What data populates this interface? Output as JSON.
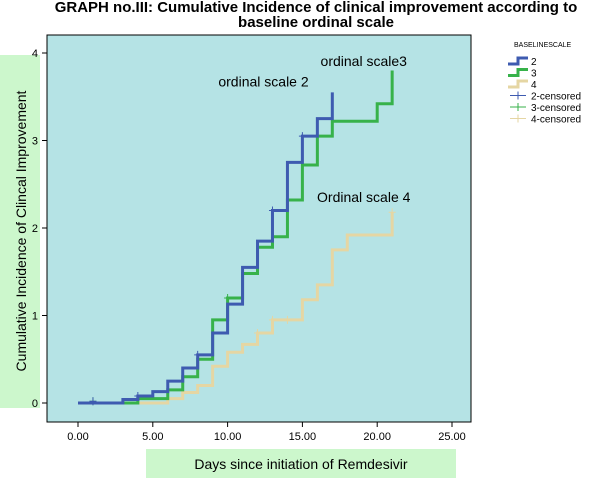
{
  "chart_data": {
    "type": "line",
    "title_line1": "GRAPH no.III:  Cumulative Incidence of clinical improvement according to",
    "title_line2": "baseline ordinal scale",
    "xlabel": "Days since initiation of Remdesivir",
    "ylabel": "Cumulative Incidence of Clincal Improvement",
    "xlim": [
      0,
      25
    ],
    "ylim": [
      0,
      4
    ],
    "x_ticks": [
      {
        "value": 0,
        "label": "0.00"
      },
      {
        "value": 5,
        "label": "5.00"
      },
      {
        "value": 10,
        "label": "10.00"
      },
      {
        "value": 15,
        "label": "15.00"
      },
      {
        "value": 20,
        "label": "20.00"
      },
      {
        "value": 25,
        "label": "25.00"
      }
    ],
    "y_ticks": [
      {
        "value": 0,
        "label": "0"
      },
      {
        "value": 1,
        "label": "1"
      },
      {
        "value": 2,
        "label": "2"
      },
      {
        "value": 3,
        "label": "3"
      },
      {
        "value": 4,
        "label": "4"
      }
    ],
    "grid": false,
    "legend_position": "top-right",
    "legend_title": "BASELINESCALE",
    "colors": {
      "plot_background": "#b5e3e5",
      "label_background": "#ccf7cc",
      "series_2": "#3e5bb0",
      "series_3": "#37b24a",
      "series_4": "#e5d6a3"
    },
    "series": [
      {
        "name": "2",
        "censored_name": "2-censored",
        "steps": [
          [
            0,
            0
          ],
          [
            3,
            0.04
          ],
          [
            4,
            0.08
          ],
          [
            5,
            0.13
          ],
          [
            6,
            0.25
          ],
          [
            7,
            0.4
          ],
          [
            8,
            0.55
          ],
          [
            9,
            0.8
          ],
          [
            10,
            1.13
          ],
          [
            11,
            1.55
          ],
          [
            12,
            1.85
          ],
          [
            13,
            2.2
          ],
          [
            14,
            2.75
          ],
          [
            15,
            3.05
          ],
          [
            16,
            3.25
          ],
          [
            17,
            3.55
          ]
        ],
        "end_x": 17,
        "censored": [
          [
            1,
            0.02
          ],
          [
            4,
            0.08
          ],
          [
            8,
            0.55
          ],
          [
            13,
            2.2
          ],
          [
            15,
            3.05
          ]
        ]
      },
      {
        "name": "3",
        "censored_name": "3-censored",
        "steps": [
          [
            0,
            0
          ],
          [
            4,
            0.05
          ],
          [
            6,
            0.15
          ],
          [
            7,
            0.3
          ],
          [
            8,
            0.5
          ],
          [
            9,
            0.95
          ],
          [
            10,
            1.2
          ],
          [
            11,
            1.48
          ],
          [
            12,
            1.78
          ],
          [
            13,
            1.9
          ],
          [
            14,
            2.32
          ],
          [
            15,
            2.72
          ],
          [
            16,
            3.05
          ],
          [
            17,
            3.22
          ],
          [
            20,
            3.42
          ],
          [
            21,
            3.8
          ]
        ],
        "end_x": 21,
        "censored": [
          [
            1,
            0.02
          ],
          [
            10,
            1.2
          ]
        ]
      },
      {
        "name": "4",
        "censored_name": "4-censored",
        "steps": [
          [
            0,
            0
          ],
          [
            6,
            0.05
          ],
          [
            7,
            0.12
          ],
          [
            8,
            0.2
          ],
          [
            9,
            0.42
          ],
          [
            10,
            0.58
          ],
          [
            11,
            0.67
          ],
          [
            12,
            0.8
          ],
          [
            13,
            0.95
          ],
          [
            15,
            1.18
          ],
          [
            16,
            1.35
          ],
          [
            17,
            1.75
          ],
          [
            18,
            1.92
          ],
          [
            21,
            2.18
          ]
        ],
        "end_x": 21,
        "censored": [
          [
            12,
            0.8
          ],
          [
            13,
            0.95
          ],
          [
            14,
            0.95
          ],
          [
            21,
            2.18
          ]
        ]
      }
    ],
    "annotations": [
      {
        "text": "ordinal scale 2",
        "x": 12.4,
        "y": 3.62
      },
      {
        "text": "ordinal scale3",
        "x": 19.1,
        "y": 3.85
      },
      {
        "text": "Ordinal scale 4",
        "x": 19.1,
        "y": 2.3
      }
    ]
  }
}
